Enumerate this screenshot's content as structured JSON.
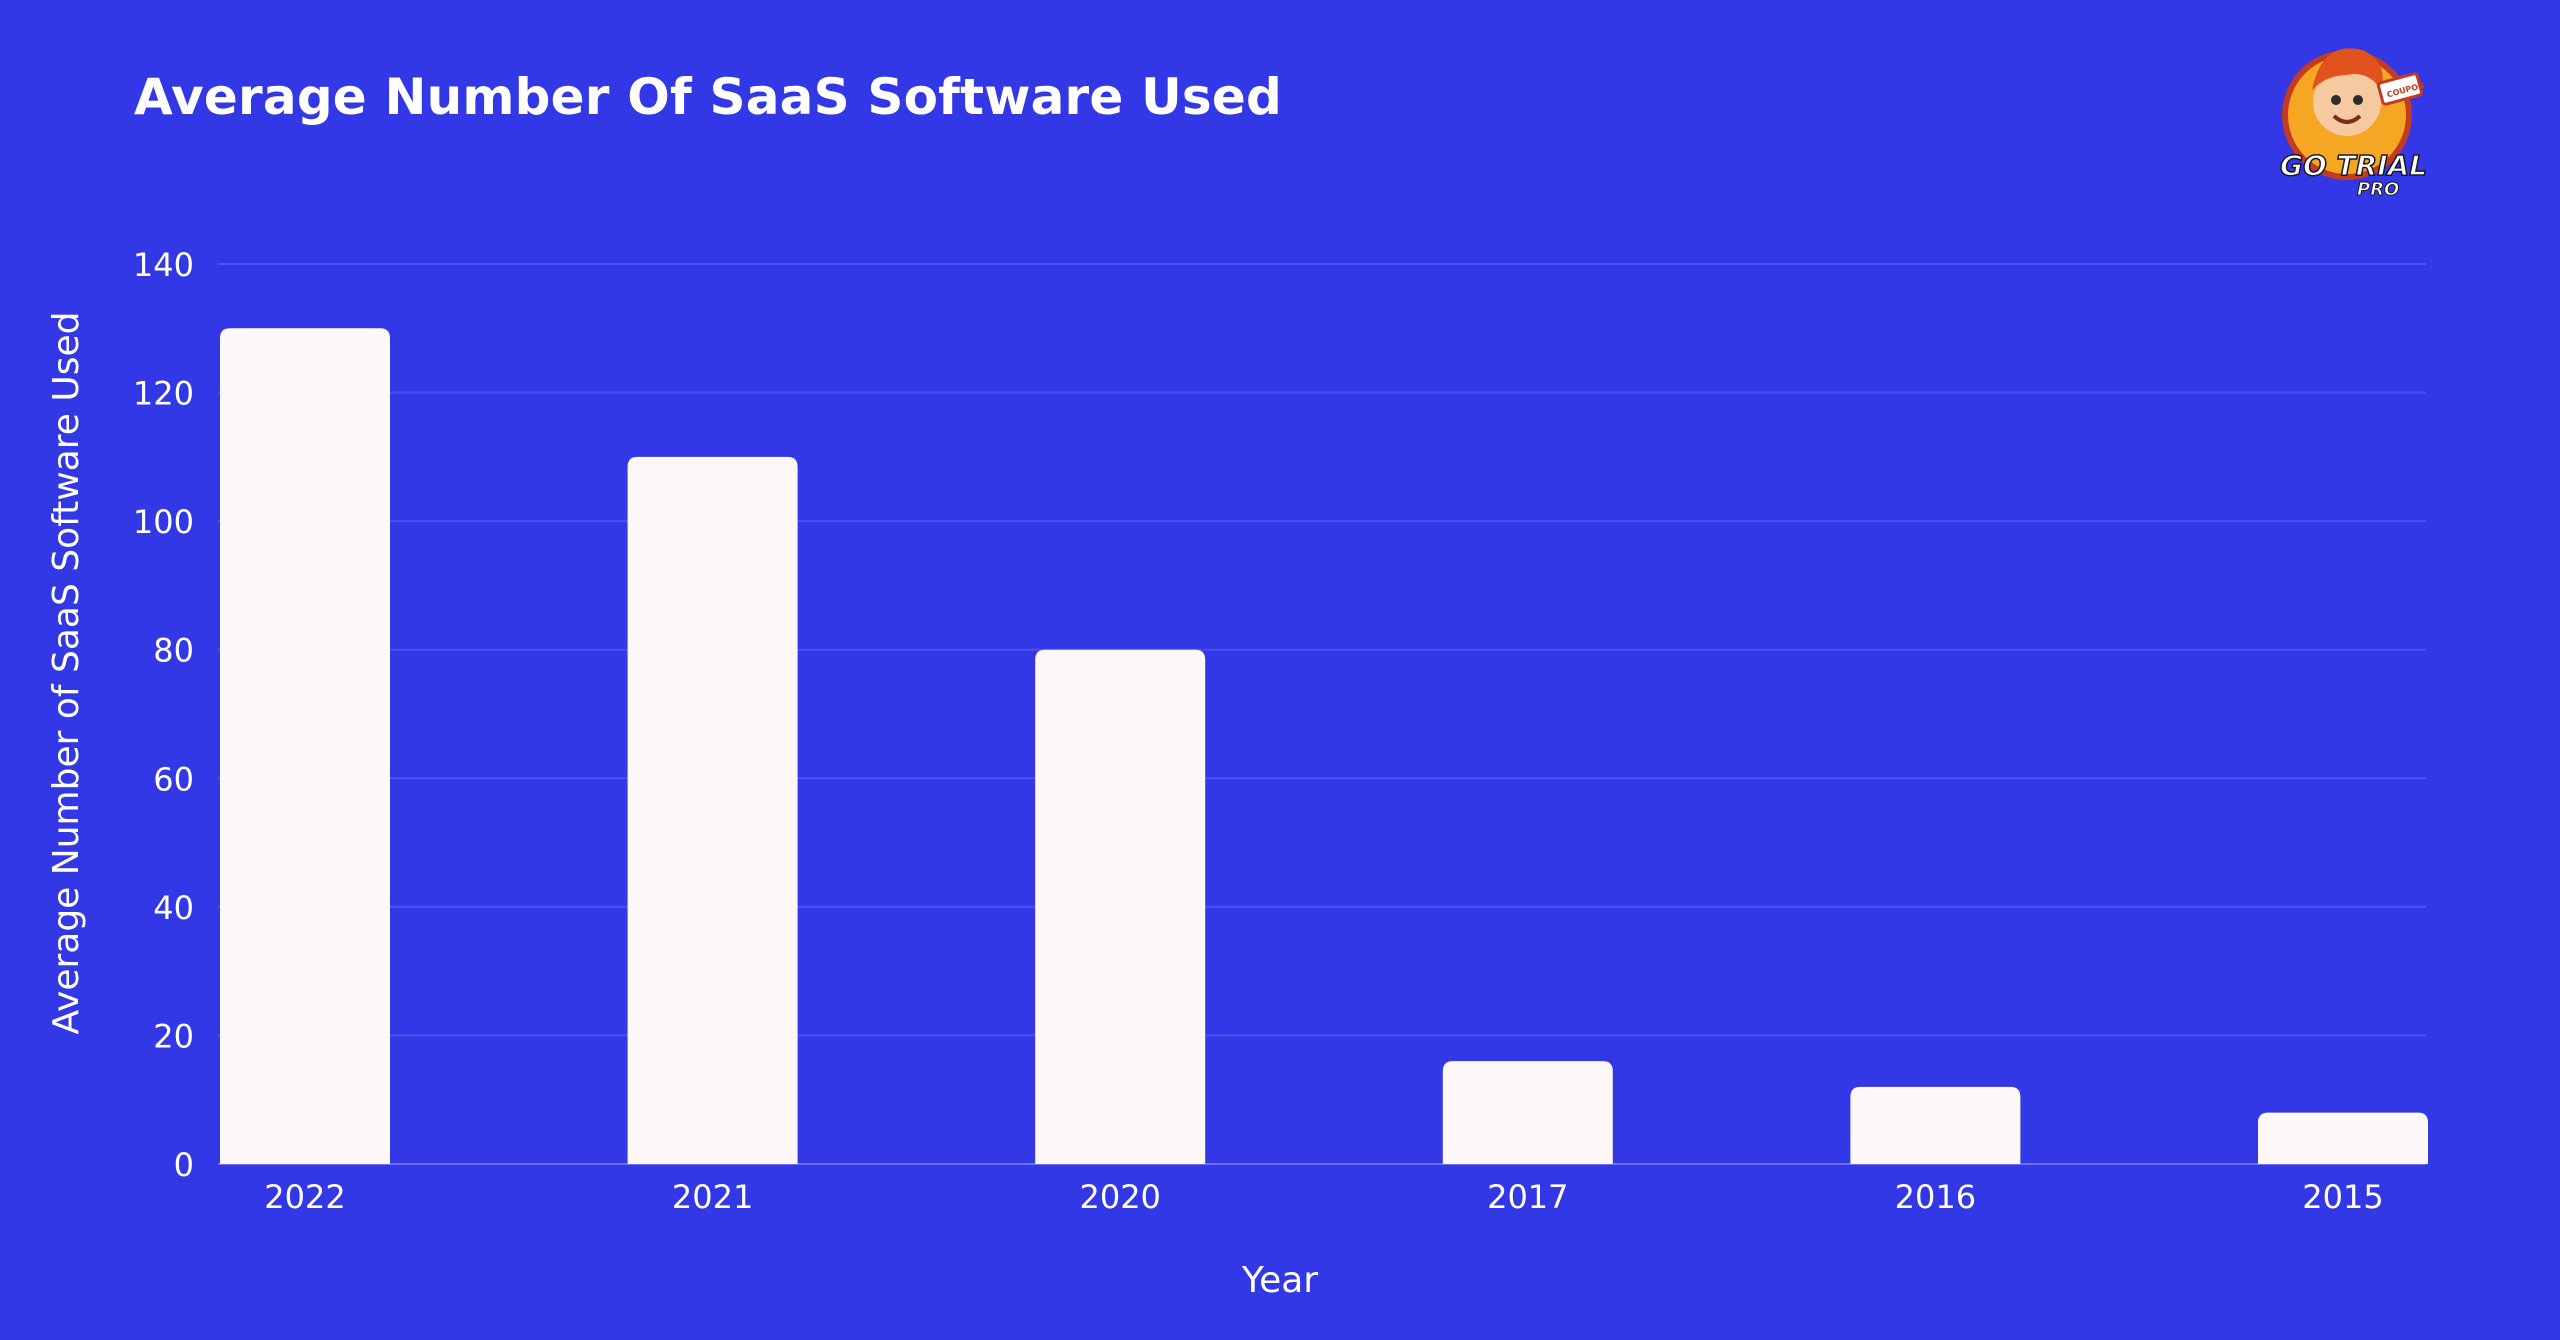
{
  "chart_data": {
    "type": "bar",
    "title": "Average Number Of SaaS Software Used",
    "xlabel": "Year",
    "ylabel": "Average Number of SaaS Software Used",
    "categories": [
      "2022",
      "2021",
      "2020",
      "2017",
      "2016",
      "2015"
    ],
    "values": [
      130,
      110,
      80,
      16,
      12,
      8
    ],
    "ylim": [
      0,
      140
    ],
    "yticks": [
      0,
      20,
      40,
      60,
      80,
      100,
      120,
      140
    ],
    "grid": true,
    "legend": "none"
  },
  "colors": {
    "background": "#3338e6",
    "bar": "#fdf7f7",
    "grid": "#4b50ee",
    "text": "#ffffff"
  },
  "logo": {
    "line1": "GO TRIAL",
    "line2": "PRO",
    "badge": "COUPON"
  }
}
